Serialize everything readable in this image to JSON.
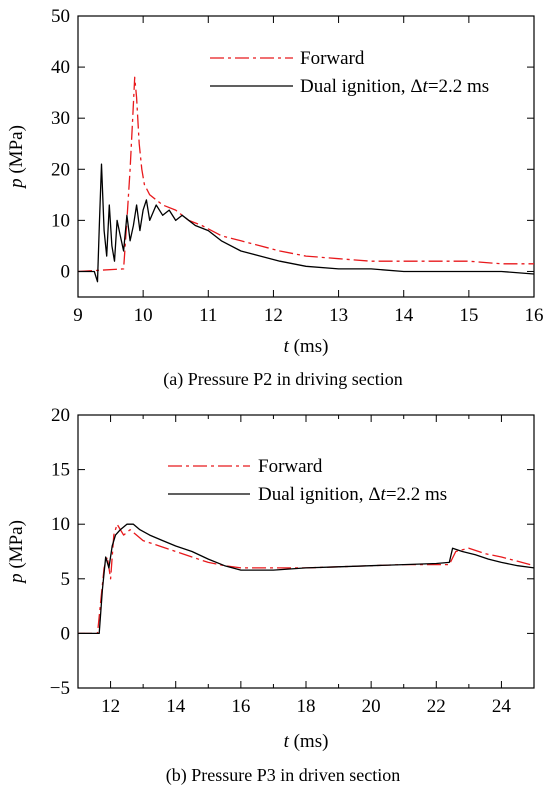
{
  "chart_data": [
    {
      "type": "line",
      "caption": "(a) Pressure P2 in driving section",
      "xlabel_var": "t",
      "xlabel_unit": " (ms)",
      "ylabel_var": "p",
      "ylabel_unit": " (MPa)",
      "xlim": [
        9,
        16
      ],
      "ylim": [
        -5,
        50
      ],
      "xticks": [
        9,
        10,
        11,
        12,
        13,
        14,
        15,
        16
      ],
      "yticks": [
        0,
        10,
        20,
        30,
        40,
        50
      ],
      "legend_position": "top-right",
      "series": [
        {
          "name": "Forward",
          "color": "#e8191c",
          "dash": "dash-dot",
          "x": [
            9.0,
            9.7,
            9.75,
            9.8,
            9.84,
            9.87,
            9.9,
            9.94,
            9.98,
            10.02,
            10.06,
            10.1,
            10.2,
            10.3,
            10.5,
            10.7,
            10.9,
            11.2,
            11.5,
            11.8,
            12.1,
            12.5,
            13.0,
            13.5,
            14.0,
            14.5,
            15.0,
            15.5,
            16.0
          ],
          "y": [
            0,
            0.5,
            10,
            20,
            30,
            38,
            34,
            25,
            20,
            17,
            16,
            15,
            14,
            13,
            12,
            10,
            9,
            7,
            6,
            5,
            4,
            3,
            2.5,
            2,
            2,
            2,
            2,
            1.5,
            1.5
          ]
        },
        {
          "name": "Dual ignition, Δt=2.2 ms",
          "name_prefix": "Dual ignition, ",
          "name_var": "Δt",
          "name_suffix": "=2.2 ms",
          "color": "#000000",
          "dash": "solid",
          "x": [
            9.0,
            9.25,
            9.3,
            9.33,
            9.36,
            9.4,
            9.44,
            9.48,
            9.52,
            9.56,
            9.6,
            9.65,
            9.7,
            9.75,
            9.8,
            9.85,
            9.9,
            9.95,
            10.0,
            10.05,
            10.1,
            10.2,
            10.3,
            10.4,
            10.5,
            10.6,
            10.8,
            11.0,
            11.2,
            11.5,
            11.8,
            12.1,
            12.5,
            13.0,
            13.5,
            14.0,
            14.5,
            15.0,
            15.5,
            16.0
          ],
          "y": [
            0,
            0,
            -2,
            10,
            21,
            8,
            3,
            13,
            5,
            2,
            10,
            7,
            4,
            11,
            6,
            9,
            13,
            8,
            12,
            14,
            10,
            13,
            11,
            12,
            10,
            11,
            9,
            8,
            6,
            4,
            3,
            2,
            1,
            0.5,
            0.5,
            0,
            0,
            0,
            0,
            -0.5
          ]
        }
      ]
    },
    {
      "type": "line",
      "caption": "(b) Pressure P3 in driven section",
      "xlabel_var": "t",
      "xlabel_unit": " (ms)",
      "ylabel_var": "p",
      "ylabel_unit": " (MPa)",
      "xlim": [
        11,
        25
      ],
      "ylim": [
        -5,
        20
      ],
      "xticks": [
        12,
        14,
        16,
        18,
        20,
        22,
        24
      ],
      "xticks_minor": [
        11,
        13,
        15,
        17,
        19,
        21,
        23,
        25
      ],
      "yticks": [
        -5,
        0,
        5,
        10,
        15,
        20
      ],
      "legend_position": "top-center",
      "series": [
        {
          "name": "Forward",
          "color": "#e8191c",
          "dash": "dash-dot",
          "x": [
            11.0,
            11.6,
            11.7,
            11.8,
            11.9,
            12.0,
            12.1,
            12.2,
            12.4,
            12.6,
            12.8,
            13.0,
            13.5,
            14.0,
            14.5,
            15.0,
            15.5,
            16.0,
            17.0,
            18.0,
            19.0,
            20.0,
            21.0,
            22.0,
            22.4,
            22.6,
            23.0,
            23.5,
            24.0,
            24.5,
            25.0
          ],
          "y": [
            0,
            0,
            3,
            6,
            7,
            5,
            9,
            10,
            9,
            9.5,
            9,
            8.5,
            8,
            7.5,
            7,
            6.5,
            6.2,
            6,
            6,
            6,
            6.1,
            6.2,
            6.3,
            6.3,
            6.3,
            7.5,
            7.8,
            7.3,
            7,
            6.6,
            6.2
          ]
        },
        {
          "name": "Dual ignition, Δt=2.2 ms",
          "name_prefix": "Dual ignition, ",
          "name_var": "Δt",
          "name_suffix": "=2.2 ms",
          "color": "#000000",
          "dash": "solid",
          "x": [
            11.0,
            11.65,
            11.75,
            11.85,
            11.95,
            12.05,
            12.15,
            12.3,
            12.5,
            12.7,
            12.9,
            13.2,
            13.6,
            14.0,
            14.5,
            15.0,
            15.5,
            16.0,
            17.0,
            18.0,
            19.0,
            20.0,
            21.0,
            22.0,
            22.4,
            22.5,
            22.8,
            23.2,
            23.6,
            24.0,
            24.5,
            25.0
          ],
          "y": [
            0,
            0,
            4,
            7,
            6,
            8,
            9,
            9.5,
            10,
            10,
            9.5,
            9,
            8.5,
            8,
            7.5,
            6.8,
            6.2,
            5.8,
            5.8,
            6,
            6.1,
            6.2,
            6.3,
            6.4,
            6.5,
            7.8,
            7.5,
            7.2,
            6.8,
            6.5,
            6.2,
            6
          ]
        }
      ]
    }
  ]
}
